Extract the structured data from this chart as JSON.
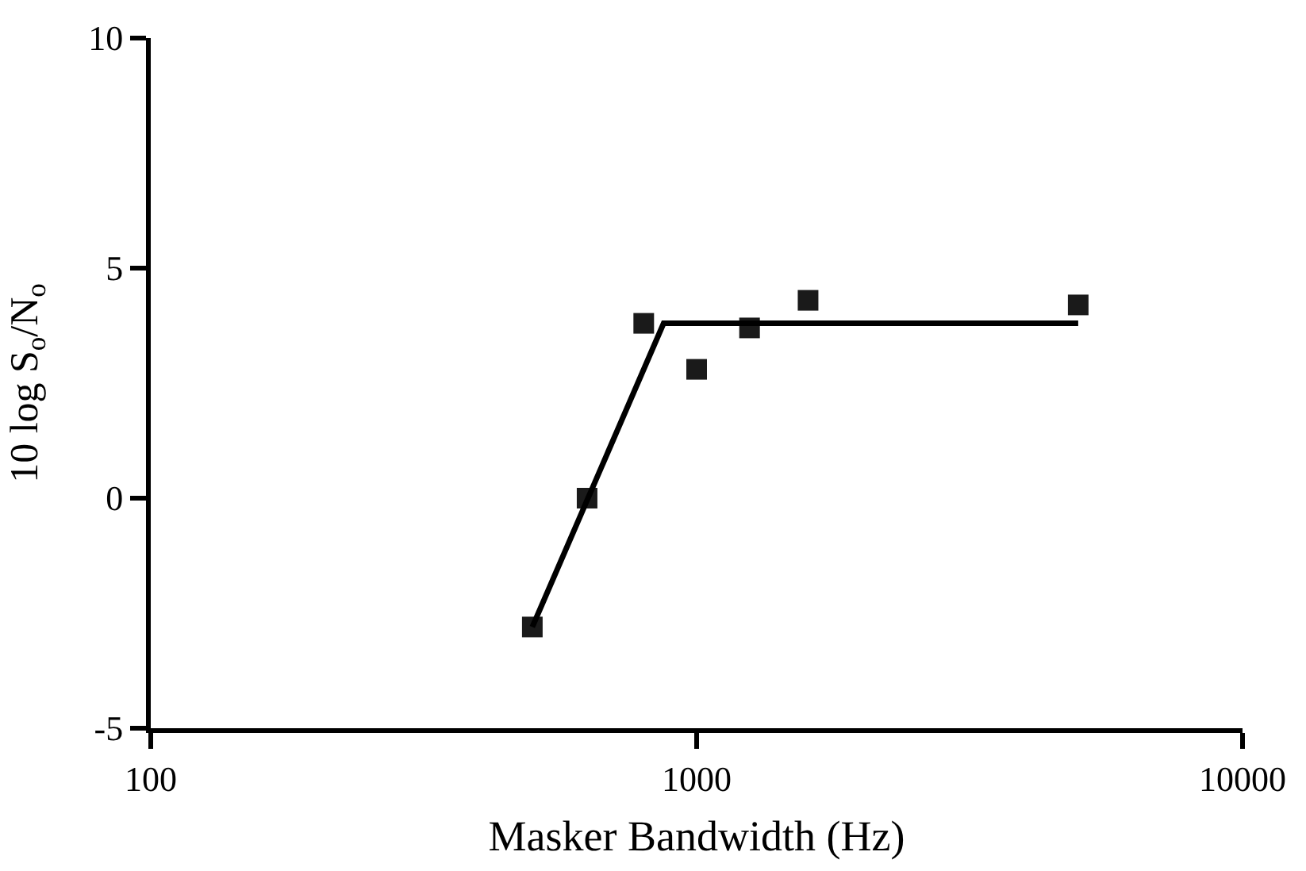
{
  "chart_data": {
    "type": "scatter",
    "xlabel": "Masker Bandwidth (Hz)",
    "ylabel": "10 log S$_{o}$/N$_{o}$",
    "log": "x",
    "xlim": [
      100,
      10000
    ],
    "xticks": [
      100,
      1000,
      10000
    ],
    "ylim": [
      -5,
      10
    ],
    "yticks": [
      -5,
      0,
      5,
      10
    ],
    "series": [
      {
        "marker": "square",
        "color": "#1a1a1a",
        "x": [
          500,
          630,
          800,
          1000,
          1250,
          1600,
          5000
        ],
        "values": [
          -2.8,
          0,
          3.8,
          2.8,
          3.7,
          4.3,
          4.2
        ]
      },
      {
        "type": "line",
        "marker": "none",
        "color": "#000000",
        "x": [
          500,
          870,
          5000
        ],
        "values": [
          -2.8,
          3.8,
          3.8
        ]
      }
    ]
  }
}
